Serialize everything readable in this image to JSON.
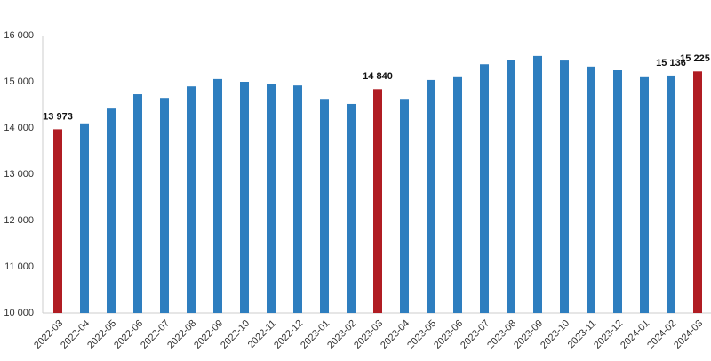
{
  "chart_data": {
    "type": "bar",
    "categories": [
      "2022-03",
      "2022-04",
      "2022-05",
      "2022-06",
      "2022-07",
      "2022-08",
      "2022-09",
      "2022-10",
      "2022-11",
      "2022-12",
      "2023-01",
      "2023-02",
      "2023-03",
      "2023-04",
      "2023-05",
      "2023-06",
      "2023-07",
      "2023-08",
      "2023-09",
      "2023-10",
      "2023-11",
      "2023-12",
      "2024-01",
      "2024-02",
      "2024-03"
    ],
    "values": [
      13973,
      14100,
      14420,
      14730,
      14650,
      14900,
      15060,
      15000,
      14950,
      14920,
      14630,
      14520,
      14840,
      14630,
      15040,
      15100,
      15380,
      15480,
      15560,
      15460,
      15330,
      15250,
      15100,
      15136,
      15225
    ],
    "value_labels": [
      "13 973",
      null,
      null,
      null,
      null,
      null,
      null,
      null,
      null,
      null,
      null,
      null,
      "14 840",
      null,
      null,
      null,
      null,
      null,
      null,
      null,
      null,
      null,
      null,
      "15 136",
      "15 225"
    ],
    "colors": [
      "#b01c23",
      "#2e7ebf",
      "#2e7ebf",
      "#2e7ebf",
      "#2e7ebf",
      "#2e7ebf",
      "#2e7ebf",
      "#2e7ebf",
      "#2e7ebf",
      "#2e7ebf",
      "#2e7ebf",
      "#2e7ebf",
      "#b01c23",
      "#2e7ebf",
      "#2e7ebf",
      "#2e7ebf",
      "#2e7ebf",
      "#2e7ebf",
      "#2e7ebf",
      "#2e7ebf",
      "#2e7ebf",
      "#2e7ebf",
      "#2e7ebf",
      "#2e7ebf",
      "#b01c23"
    ],
    "ylim": [
      10000,
      16000
    ],
    "yticks": [
      {
        "value": 10000,
        "label": "10 000"
      },
      {
        "value": 11000,
        "label": "11 000"
      },
      {
        "value": 12000,
        "label": "12 000"
      },
      {
        "value": 13000,
        "label": "13 000"
      },
      {
        "value": 14000,
        "label": "14 000"
      },
      {
        "value": 15000,
        "label": "15 000"
      },
      {
        "value": 16000,
        "label": "16 000"
      }
    ],
    "grid": false
  }
}
